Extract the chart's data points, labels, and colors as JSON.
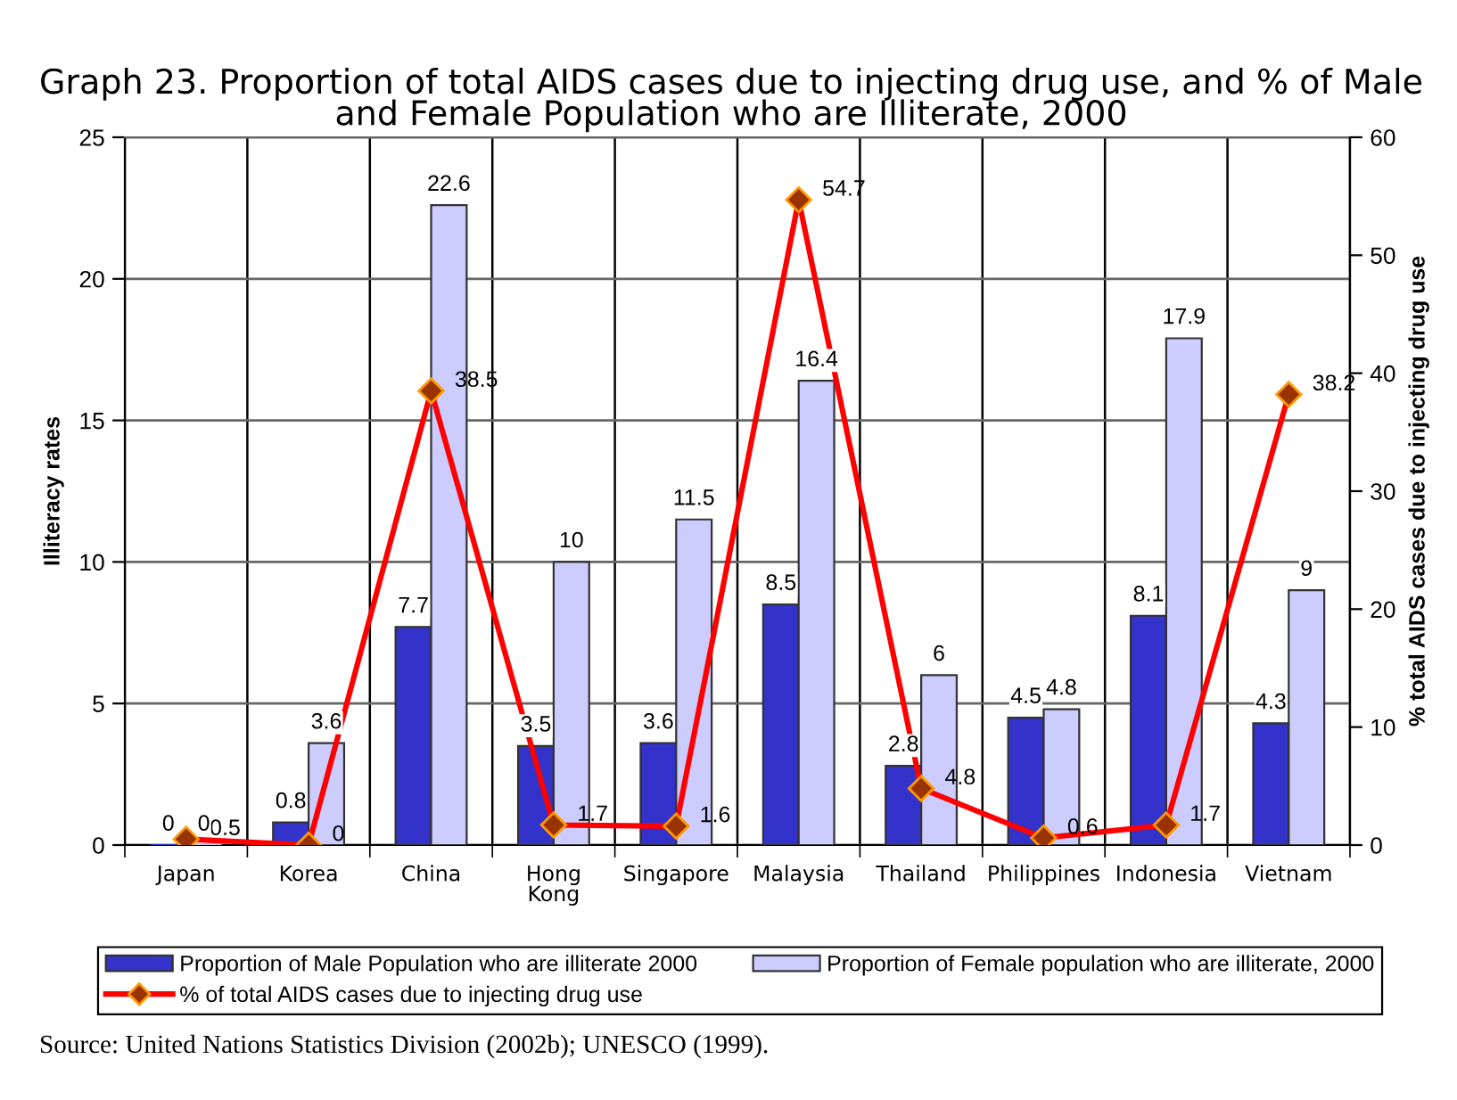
{
  "chart_data": {
    "type": "bar",
    "title": "Graph 23. Proportion of total AIDS cases due to injecting drug use, and % of Male\nand Female Population who are Illiterate, 2000",
    "categories": [
      "Japan",
      "Korea",
      "China",
      "Hong\nKong",
      "Singapore",
      "Malaysia",
      "Thailand",
      "Philippines",
      "Indonesia",
      "Vietnam"
    ],
    "series": [
      {
        "name": "Proportion of Male Population who are illiterate 2000",
        "color": "#3333cc",
        "values": [
          0,
          0.8,
          7.7,
          3.5,
          3.6,
          8.5,
          2.8,
          4.5,
          8.1,
          4.3
        ]
      },
      {
        "name": "Proportion of Female population who are illiterate, 2000",
        "color": "#ccccff",
        "values": [
          0,
          3.6,
          22.6,
          10,
          11.5,
          16.4,
          6,
          4.8,
          17.9,
          9
        ]
      },
      {
        "name": "% of total AIDS cases due to injecting drug use",
        "type": "line",
        "axis": "y2",
        "color": "#ff0000",
        "values": [
          0.5,
          0,
          38.5,
          1.7,
          1.6,
          54.7,
          4.8,
          0.6,
          1.7,
          38.2
        ]
      }
    ],
    "ylabel": "Illiteracy rates",
    "y2label": "% total AIDS cases due to injecting drug use",
    "ylim": [
      0,
      25
    ],
    "yticks": [
      0,
      5,
      10,
      15,
      20,
      25
    ],
    "y2lim": [
      0,
      60
    ],
    "y2ticks": [
      0,
      10,
      20,
      30,
      40,
      50,
      60
    ],
    "marker": "diamond",
    "grid": true,
    "legend": "bottom",
    "data_labels": true,
    "annotations": [
      "Source: United Nations Statistics Division (2002b); UNESCO (1999)."
    ]
  }
}
